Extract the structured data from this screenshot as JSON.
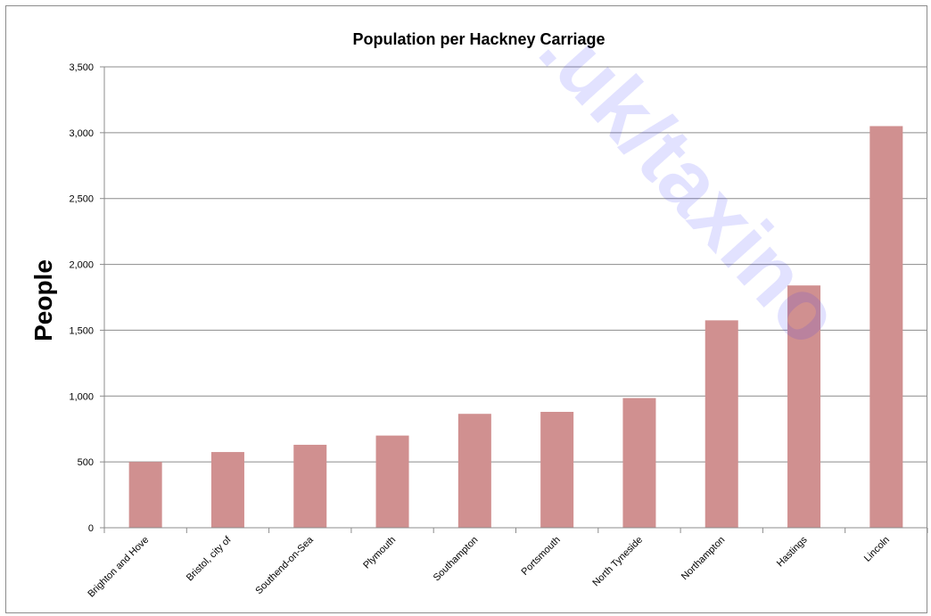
{
  "chart_data": {
    "type": "bar",
    "title": "Population per Hackney Carriage",
    "xlabel": "",
    "ylabel": "People",
    "ylim": [
      0,
      3500
    ],
    "yticks": [
      0,
      500,
      1000,
      1500,
      2000,
      2500,
      3000,
      3500
    ],
    "ytick_labels": [
      "0",
      "500",
      "1,000",
      "1,500",
      "2,000",
      "2,500",
      "3,000",
      "3,500"
    ],
    "grid": true,
    "legend": "none",
    "bar_color": "#d09090",
    "categories": [
      "Brighton and Hove",
      "Bristol, city of",
      "Southend-on-Sea",
      "Plymouth",
      "Southampton",
      "Portsmouth",
      "North Tyneside",
      "Northampton",
      "Hastings",
      "Lincoln"
    ],
    "values": [
      500,
      575,
      630,
      700,
      865,
      880,
      985,
      1575,
      1840,
      3050
    ]
  },
  "watermark": {
    "text": ".uk/taxino",
    "color": "#2b2bff"
  }
}
